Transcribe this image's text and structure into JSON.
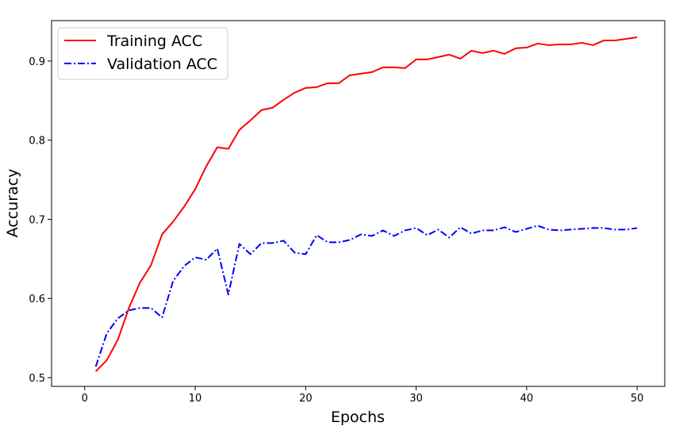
{
  "chart_data": {
    "type": "line",
    "xlabel": "Epochs",
    "ylabel": "Accuracy",
    "xlim": [
      -3,
      52.5
    ],
    "ylim": [
      0.489,
      0.951
    ],
    "xticks": [
      0,
      10,
      20,
      30,
      40,
      50
    ],
    "yticks": [
      0.5,
      0.6,
      0.7,
      0.8,
      0.9
    ],
    "grid": false,
    "legend_position": "top-left",
    "x": [
      1,
      2,
      3,
      4,
      5,
      6,
      7,
      8,
      9,
      10,
      11,
      12,
      13,
      14,
      15,
      16,
      17,
      18,
      19,
      20,
      21,
      22,
      23,
      24,
      25,
      26,
      27,
      28,
      29,
      30,
      31,
      32,
      33,
      34,
      35,
      36,
      37,
      38,
      39,
      40,
      41,
      42,
      43,
      44,
      45,
      46,
      47,
      48,
      49,
      50
    ],
    "series": [
      {
        "name": "Training ACC",
        "color": "#ff0000",
        "dash": "solid",
        "values": [
          0.508,
          0.522,
          0.548,
          0.588,
          0.62,
          0.642,
          0.681,
          0.697,
          0.716,
          0.738,
          0.767,
          0.791,
          0.789,
          0.813,
          0.825,
          0.838,
          0.841,
          0.851,
          0.86,
          0.866,
          0.867,
          0.872,
          0.872,
          0.882,
          0.884,
          0.886,
          0.892,
          0.892,
          0.891,
          0.902,
          0.902,
          0.905,
          0.908,
          0.903,
          0.913,
          0.91,
          0.913,
          0.909,
          0.916,
          0.917,
          0.922,
          0.92,
          0.921,
          0.921,
          0.923,
          0.92,
          0.926,
          0.926,
          0.928,
          0.93
        ]
      },
      {
        "name": "Validation ACC",
        "color": "#0000ff",
        "dash": "dashdot",
        "values": [
          0.514,
          0.556,
          0.575,
          0.585,
          0.588,
          0.588,
          0.576,
          0.622,
          0.641,
          0.652,
          0.649,
          0.663,
          0.605,
          0.669,
          0.656,
          0.67,
          0.67,
          0.673,
          0.658,
          0.656,
          0.68,
          0.671,
          0.671,
          0.674,
          0.681,
          0.679,
          0.686,
          0.679,
          0.686,
          0.689,
          0.68,
          0.687,
          0.677,
          0.69,
          0.682,
          0.686,
          0.686,
          0.69,
          0.684,
          0.688,
          0.692,
          0.687,
          0.686,
          0.687,
          0.688,
          0.689,
          0.689,
          0.687,
          0.687,
          0.689
        ]
      }
    ]
  }
}
